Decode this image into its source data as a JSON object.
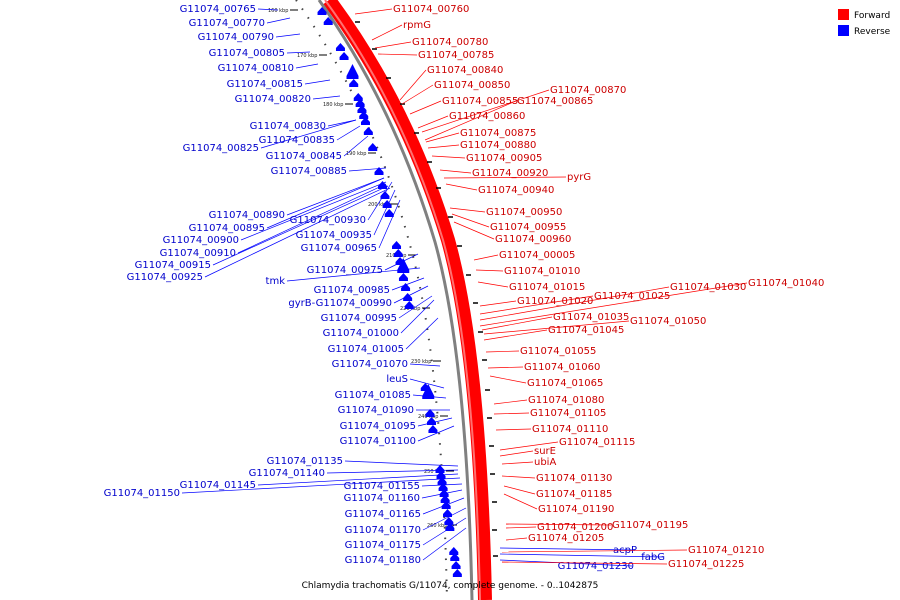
{
  "colors": {
    "forward": "#ff0000",
    "reverse": "#0000ff",
    "backbone": "#808080"
  },
  "legend": [
    {
      "label": "Forward",
      "color": "#ff0000"
    },
    {
      "label": "Reverse",
      "color": "#0000ff"
    }
  ],
  "caption": "Chlamydia trachomatis G/11074, complete genome. - 0..1042875",
  "kbp_ticks": [
    "160 kbp",
    "170 kbp",
    "180 kbp",
    "190 kbp",
    "200 kbp",
    "210 kbp",
    "220 kbp",
    "230 kbp",
    "240 kbp",
    "250 kbp",
    "260 kbp"
  ],
  "reverse_labels": [
    "G11074_00765",
    "G11074_00770",
    "G11074_00790",
    "G11074_00805",
    "G11074_00810",
    "G11074_00815",
    "G11074_00820",
    "G11074_00830",
    "G11074_00835",
    "G11074_00825",
    "G11074_00845",
    "G11074_00885",
    "G11074_00890",
    "G11074_00930",
    "G11074_00895",
    "G11074_00935",
    "G11074_00900",
    "G11074_00965",
    "G11074_00910",
    "G11074_00915",
    "G11074_00925",
    "G11074_00975",
    "tmk",
    "G11074_00985",
    "gyrB-G11074_00990",
    "G11074_00995",
    "G11074_01000",
    "G11074_01005",
    "G11074_01070",
    "leuS",
    "G11074_01085",
    "G11074_01090",
    "G11074_01095",
    "G11074_01100",
    "G11074_01135",
    "G11074_01140",
    "G11074_01145",
    "G11074_01150",
    "G11074_01155",
    "G11074_01160",
    "G11074_01165",
    "G11074_01170",
    "G11074_01175",
    "G11074_01180",
    "acpP",
    "fabG",
    "G11074_01230"
  ],
  "forward_labels": [
    "G11074_00760",
    "rpmG",
    "G11074_00780",
    "G11074_00785",
    "G11074_00840",
    "G11074_00850",
    "G11074_00870",
    "G11074_00855",
    "G11074_00865",
    "G11074_00860",
    "G11074_00875",
    "G11074_00880",
    "G11074_00905",
    "G11074_00920",
    "pyrG",
    "G11074_00940",
    "G11074_00950",
    "G11074_00955",
    "G11074_00960",
    "G11074_00005",
    "G11074_01010",
    "G11074_01015",
    "G11074_01040",
    "G11074_01030",
    "G11074_01025",
    "G11074_01020",
    "G11074_01035",
    "G11074_01050",
    "G11074_01045",
    "G11074_01055",
    "G11074_01060",
    "G11074_01065",
    "G11074_01080",
    "G11074_01105",
    "G11074_01110",
    "G11074_01115",
    "surE",
    "ubiA",
    "G11074_01130",
    "G11074_01185",
    "G11074_01190",
    "G11074_01195",
    "G11074_01200",
    "G11074_01205",
    "G11074_01210",
    "G11074_01225"
  ]
}
